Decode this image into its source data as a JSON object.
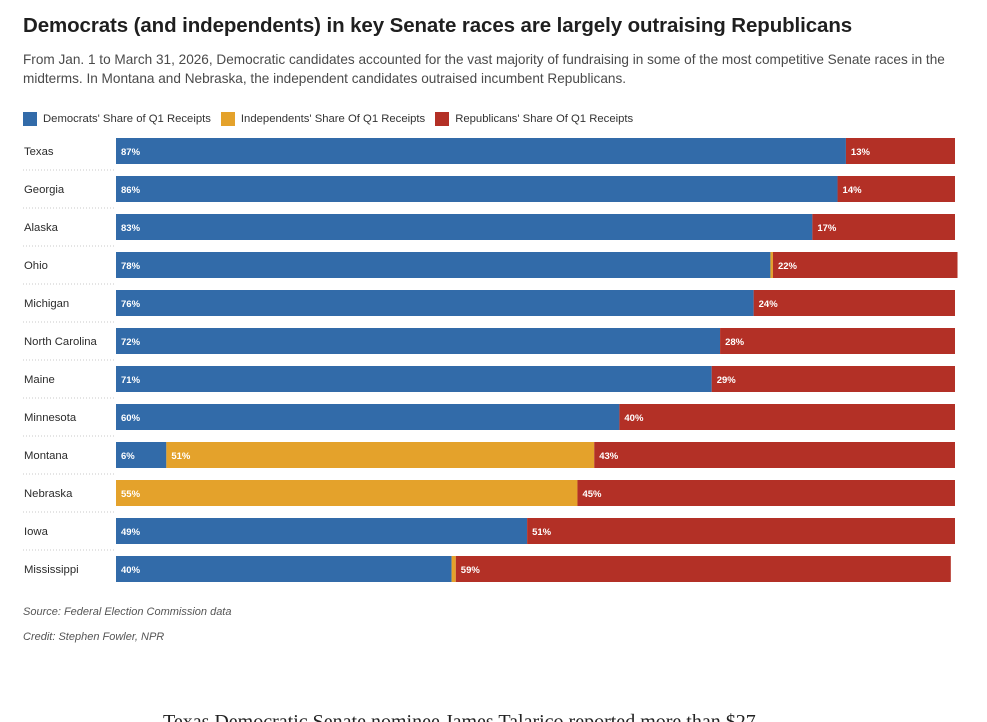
{
  "title": "Democrats (and independents) in key Senate races are largely outraising Republicans",
  "subtitle": "From Jan. 1 to March 31, 2026, Democratic candidates accounted for the vast majority of fundraising in some of the most competitive Senate races in the midterms. In Montana and Nebraska, the independent candidates outraised incumbent Republicans.",
  "source": "Source: Federal Election Commission data",
  "credit": "Credit: Stephen Fowler, NPR",
  "cutoff_text": "Texas Democratic Senate nominee James Talarico reported more than $27",
  "colors": {
    "democrat": "#326ba9",
    "independent": "#e4a22b",
    "republican": "#b33026"
  },
  "chart_data": {
    "type": "bar",
    "orientation": "horizontal",
    "stacked": true,
    "normalized": true,
    "legend_position": "top-left",
    "grid": false,
    "xlim": [
      0,
      100
    ],
    "categories": [
      "Texas",
      "Georgia",
      "Alaska",
      "Ohio",
      "Michigan",
      "North Carolina",
      "Maine",
      "Minnesota",
      "Montana",
      "Nebraska",
      "Iowa",
      "Mississippi"
    ],
    "series": [
      {
        "name": "Democrats' Share of Q1 Receipts",
        "color": "#326ba9",
        "values": [
          87,
          86,
          83,
          78,
          76,
          72,
          71,
          60,
          6,
          0,
          49,
          40
        ],
        "labels": [
          "87%",
          "86%",
          "83%",
          "78%",
          "76%",
          "72%",
          "71%",
          "60%",
          "6%",
          "",
          "49%",
          "40%"
        ]
      },
      {
        "name": "Independents' Share Of Q1 Receipts",
        "color": "#e4a22b",
        "values": [
          0,
          0,
          0,
          0.3,
          0,
          0,
          0,
          0,
          51,
          55,
          0,
          0.5
        ],
        "labels": [
          "",
          "",
          "",
          "",
          "",
          "",
          "",
          "",
          "51%",
          "55%",
          "",
          ""
        ]
      },
      {
        "name": "Republicans' Share Of Q1 Receipts",
        "color": "#b33026",
        "values": [
          13,
          14,
          17,
          22,
          24,
          28,
          29,
          40,
          43,
          45,
          51,
          59
        ],
        "labels": [
          "13%",
          "14%",
          "17%",
          "22%",
          "24%",
          "28%",
          "29%",
          "40%",
          "43%",
          "45%",
          "51%",
          "59%"
        ]
      }
    ]
  }
}
